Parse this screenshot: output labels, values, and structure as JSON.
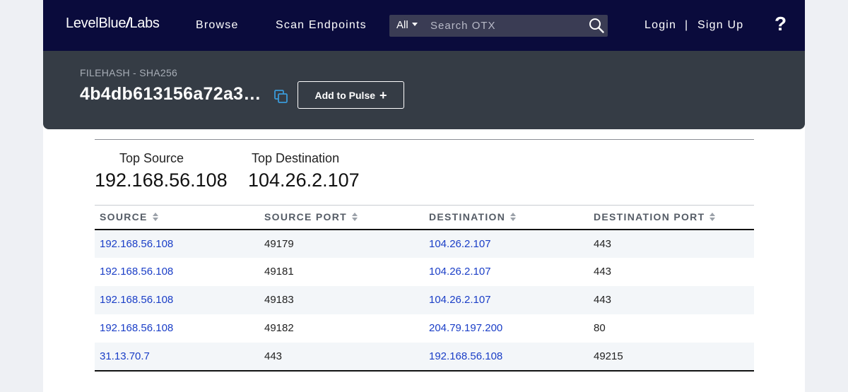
{
  "brand": {
    "name_left": "LevelBlue",
    "name_slash": "/",
    "name_right": "Labs"
  },
  "nav": {
    "browse": "Browse",
    "scan_endpoints": "Scan Endpoints",
    "login": "Login",
    "separator": "|",
    "signup": "Sign Up",
    "help": "?"
  },
  "search": {
    "scope": "All",
    "placeholder": "Search OTX",
    "value": ""
  },
  "indicator": {
    "type_label": "FILEHASH - SHA256",
    "hash": "4b4db613156a72a3…",
    "add_to_pulse_label": "Add to Pulse"
  },
  "summary": {
    "top_source_label": "Top Source",
    "top_source_value": "192.168.56.108",
    "top_destination_label": "Top Destination",
    "top_destination_value": "104.26.2.107"
  },
  "table": {
    "columns": [
      "SOURCE",
      "SOURCE PORT",
      "DESTINATION",
      "DESTINATION PORT"
    ],
    "rows": [
      {
        "source": "192.168.56.108",
        "source_port": "49179",
        "destination": "104.26.2.107",
        "destination_port": "443"
      },
      {
        "source": "192.168.56.108",
        "source_port": "49181",
        "destination": "104.26.2.107",
        "destination_port": "443"
      },
      {
        "source": "192.168.56.108",
        "source_port": "49183",
        "destination": "104.26.2.107",
        "destination_port": "443"
      },
      {
        "source": "192.168.56.108",
        "source_port": "49182",
        "destination": "204.79.197.200",
        "destination_port": "80"
      },
      {
        "source": "31.13.70.7",
        "source_port": "443",
        "destination": "192.168.56.108",
        "destination_port": "49215"
      }
    ]
  },
  "colors": {
    "nav_bg": "#0a0b3c",
    "header_bg": "#353c45",
    "link": "#1a3ec7",
    "copy_icon": "#3a9ad9"
  }
}
